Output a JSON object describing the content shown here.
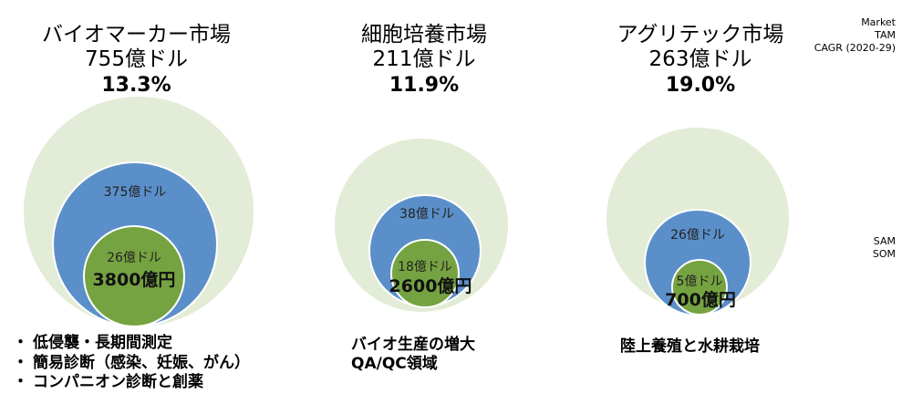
{
  "legend": {
    "market": "Market",
    "tam": "TAM",
    "cagr": "CAGR (2020-29)",
    "sam": "SAM",
    "som": "SOM"
  },
  "colors": {
    "tam_fill": "#e3ecd6",
    "sam_fill": "#5b8fc9",
    "som_fill": "#76a341",
    "stroke": "#ffffff"
  },
  "markets": [
    {
      "name": "バイオマーカー市場",
      "tam": "755億ドル",
      "cagr": "13.3%",
      "sam": "375億ドル",
      "som": "26億ドル",
      "som_jpy": "3800億円"
    },
    {
      "name": "細胞培養市場",
      "tam": "211億ドル",
      "cagr": "11.9%",
      "sam": "38億ドル",
      "som": "18億ドル",
      "som_jpy": "2600億円"
    },
    {
      "name": "アグリテック市場",
      "tam": "263億ドル",
      "cagr": "19.0%",
      "sam": "26億ドル",
      "som": "5億ドル",
      "som_jpy": "700億円"
    }
  ],
  "applications": {
    "biomarker": [
      "低侵襲・長期間測定",
      "簡易診断（感染、妊娠、がん）",
      "コンパニオン診断と創薬"
    ],
    "cell_culture": [
      "バイオ生産の増大",
      "QA/QC領域"
    ],
    "agritech": [
      "陸上養殖と水耕栽培"
    ]
  }
}
